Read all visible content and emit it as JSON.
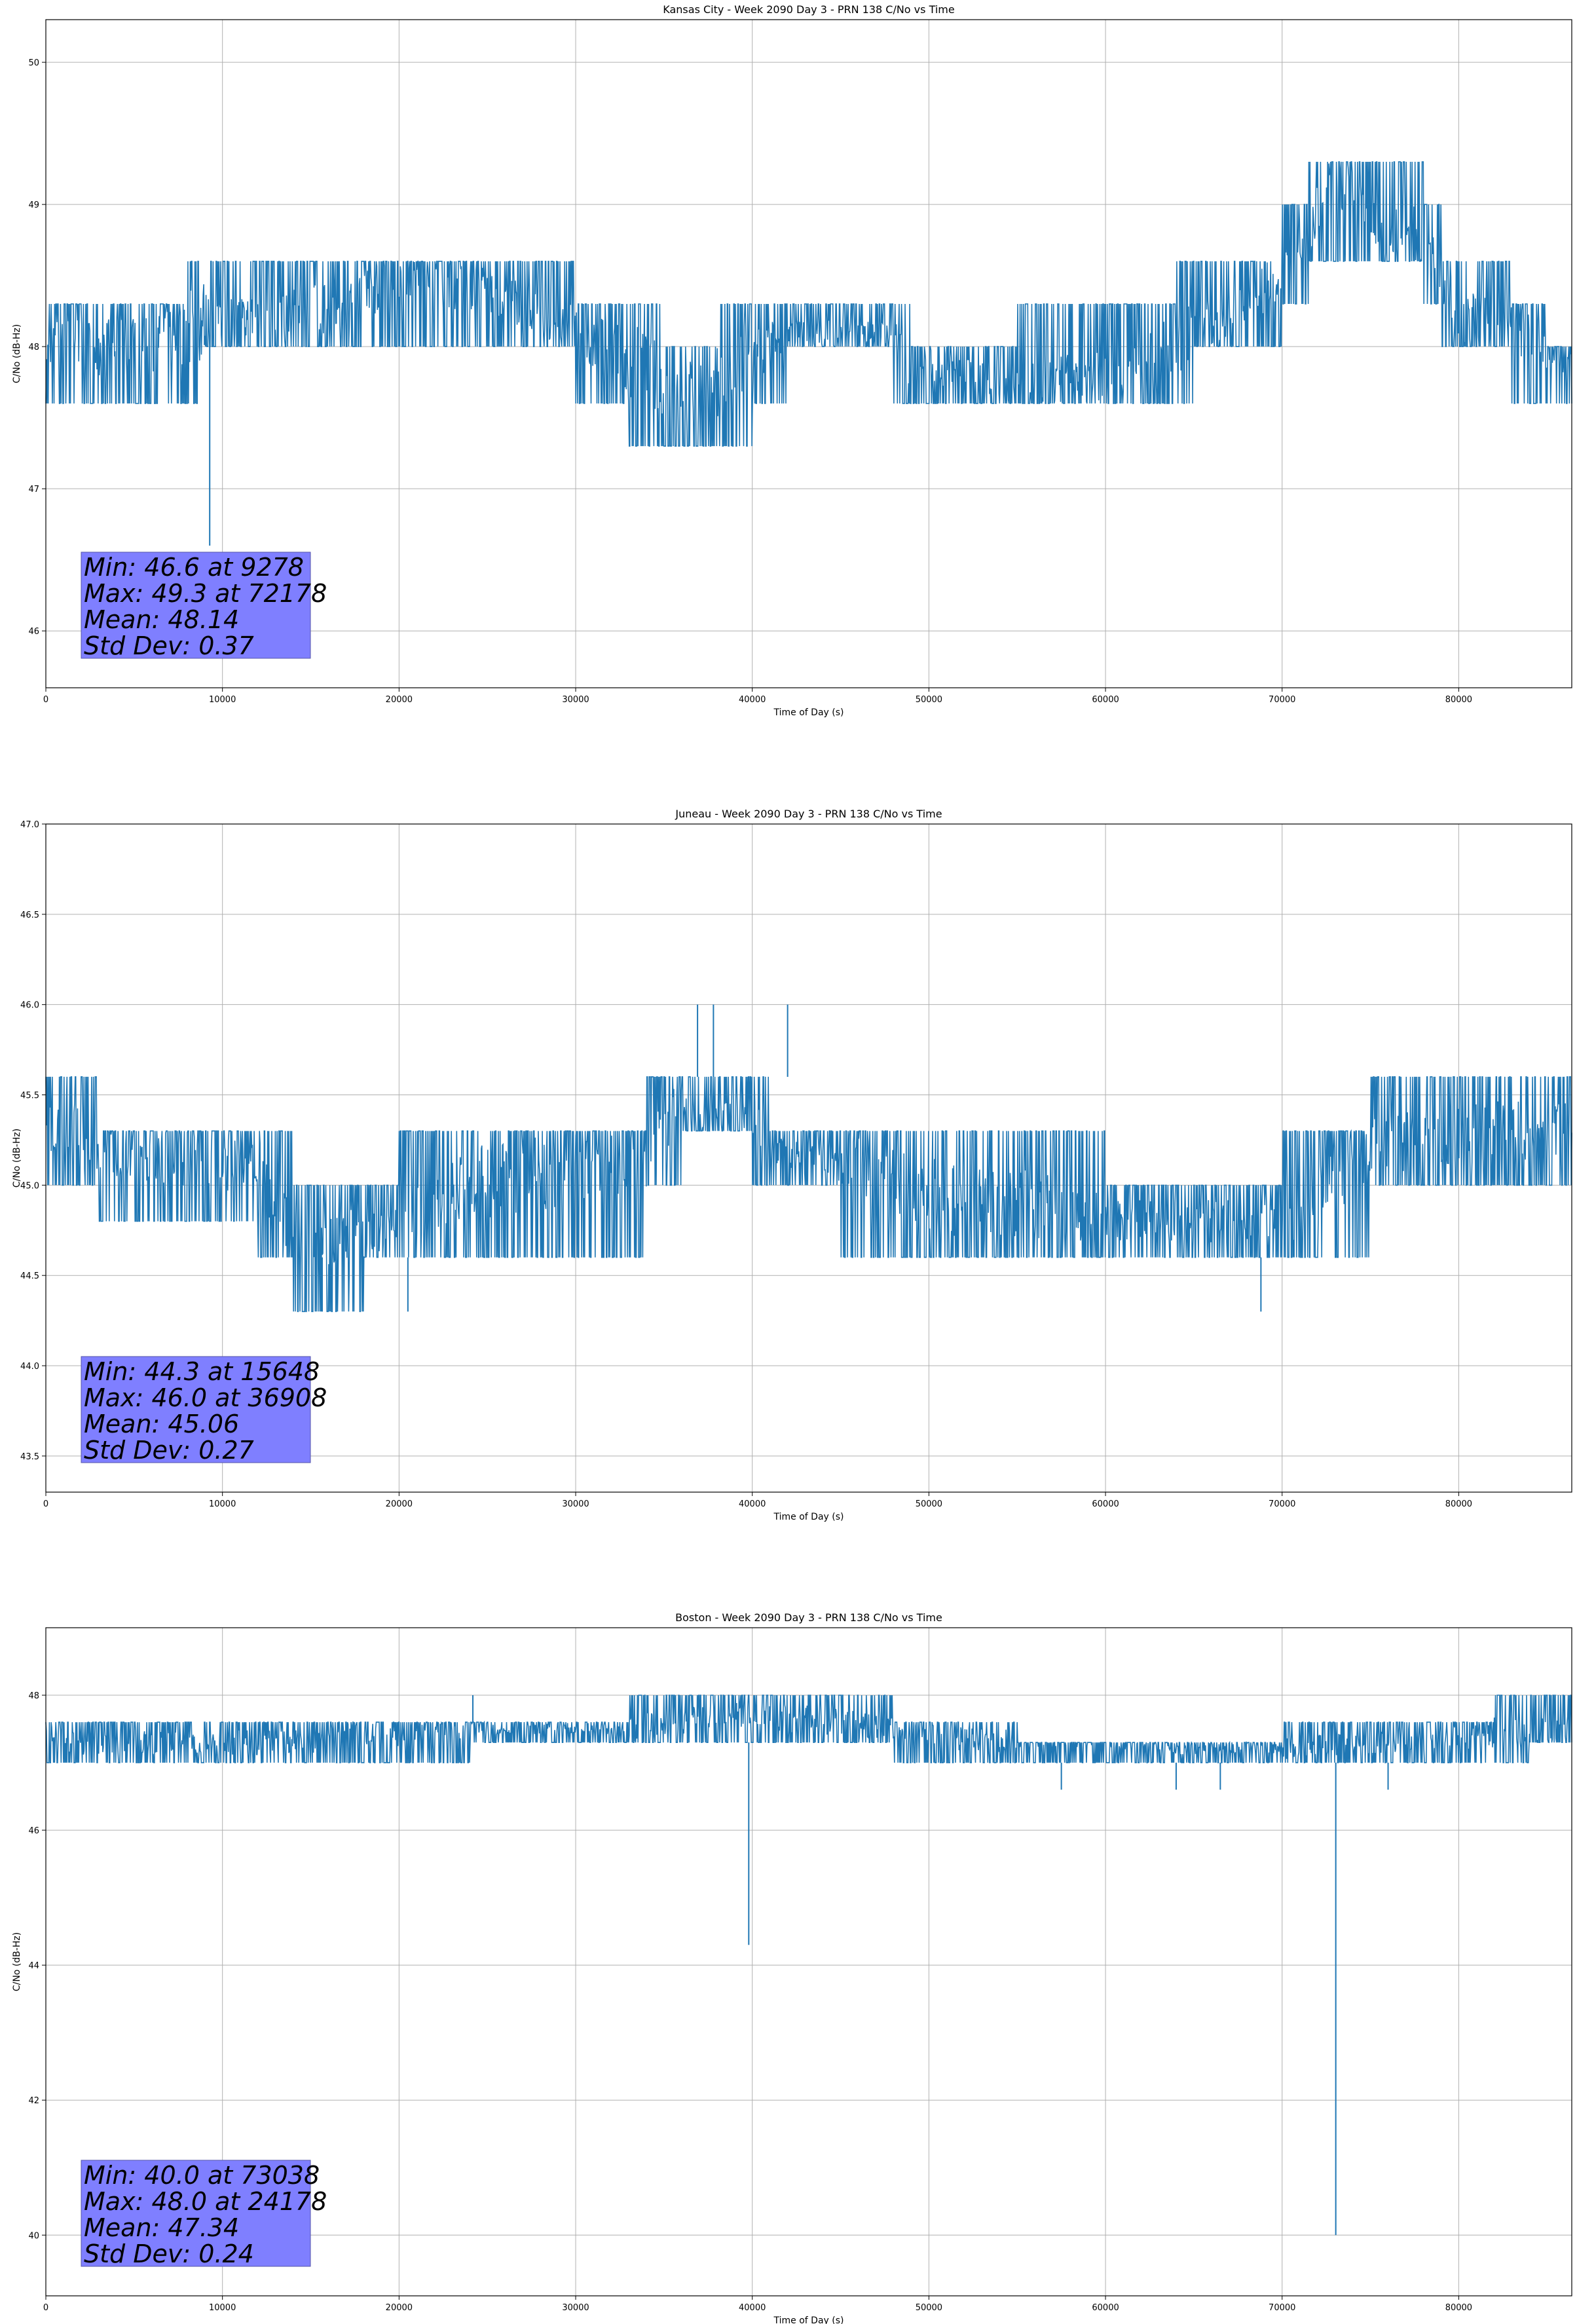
{
  "chart_data": [
    {
      "type": "line",
      "title": "Kansas City - Week 2090 Day 3 - PRN 138 C/No vs Time",
      "xlabel": "Time of Day (s)",
      "ylabel": "C/No (dB-Hz)",
      "xlim": [
        0,
        86400
      ],
      "ylim": [
        45.6,
        50.3
      ],
      "xticks": [
        0,
        10000,
        20000,
        30000,
        40000,
        50000,
        60000,
        70000,
        80000
      ],
      "yticks": [
        46,
        47,
        48,
        49,
        50
      ],
      "ytick_labels": [
        "46",
        "47",
        "48",
        "49",
        "50"
      ],
      "grid": true,
      "color": "#1f77b4",
      "segments": [
        [
          0,
          48.0,
          47.6,
          48.3
        ],
        [
          6000,
          48.0,
          47.6,
          48.3
        ],
        [
          8000,
          48.1,
          47.6,
          48.3
        ],
        [
          9000,
          48.2,
          48.0,
          48.6
        ],
        [
          13000,
          48.2,
          48.0,
          48.6
        ],
        [
          17000,
          48.3,
          48.0,
          48.6
        ],
        [
          20000,
          48.5,
          48.3,
          48.6
        ],
        [
          25000,
          48.4,
          48.0,
          48.6
        ],
        [
          30000,
          48.1,
          48.0,
          48.3
        ],
        [
          33000,
          47.9,
          47.6,
          48.3
        ],
        [
          35000,
          47.7,
          47.3,
          48.0
        ],
        [
          38000,
          47.7,
          47.3,
          48.0
        ],
        [
          40000,
          47.9,
          47.6,
          48.3
        ],
        [
          42000,
          48.1,
          48.0,
          48.3
        ],
        [
          48000,
          48.1,
          48.0,
          48.3
        ],
        [
          49000,
          47.9,
          47.6,
          48.0
        ],
        [
          55000,
          47.7,
          47.6,
          48.0
        ],
        [
          60000,
          47.8,
          47.6,
          48.3
        ],
        [
          64000,
          48.0,
          47.6,
          48.3
        ],
        [
          65000,
          48.1,
          48.0,
          48.6
        ],
        [
          68000,
          48.3,
          48.0,
          48.6
        ],
        [
          70000,
          48.5,
          48.3,
          48.6
        ],
        [
          71500,
          48.8,
          48.6,
          49.0
        ],
        [
          73000,
          49.2,
          49.0,
          49.3
        ],
        [
          75000,
          48.9,
          48.6,
          49.3
        ],
        [
          78000,
          48.8,
          48.6,
          49.0
        ],
        [
          79000,
          48.5,
          48.3,
          48.6
        ],
        [
          80000,
          48.2,
          48.0,
          48.6
        ],
        [
          83000,
          48.2,
          48.0,
          48.3
        ],
        [
          85000,
          47.9,
          47.6,
          48.0
        ],
        [
          86400,
          47.9,
          47.6,
          48.0
        ]
      ],
      "spikes": [
        [
          9278,
          46.6,
          48.0
        ]
      ],
      "stats": {
        "min": "Min: 46.6 at 9278",
        "max": "Max: 49.3 at 72178",
        "mean": "Mean: 48.14",
        "std": "Std Dev: 0.37"
      }
    },
    {
      "type": "line",
      "title": "Juneau - Week 2090 Day 3 - PRN 138 C/No vs Time",
      "xlabel": "Time of Day (s)",
      "ylabel": "C/No (dB-Hz)",
      "xlim": [
        0,
        86400
      ],
      "ylim": [
        43.3,
        47.0
      ],
      "xticks": [
        0,
        10000,
        20000,
        30000,
        40000,
        50000,
        60000,
        70000,
        80000
      ],
      "yticks": [
        43.5,
        44.0,
        44.5,
        45.0,
        45.5,
        46.0,
        46.5,
        47.0
      ],
      "ytick_labels": [
        "43.5",
        "44.0",
        "44.5",
        "45.0",
        "45.5",
        "46.0",
        "46.5",
        "47.0"
      ],
      "grid": true,
      "color": "#1f77b4",
      "segments": [
        [
          0,
          45.3,
          45.0,
          45.6
        ],
        [
          1500,
          45.3,
          45.0,
          45.6
        ],
        [
          3000,
          45.2,
          45.0,
          45.3
        ],
        [
          12000,
          45.1,
          44.8,
          45.3
        ],
        [
          14000,
          44.8,
          44.6,
          45.0
        ],
        [
          16000,
          44.7,
          44.3,
          45.0
        ],
        [
          18000,
          44.7,
          44.6,
          45.0
        ],
        [
          20000,
          44.8,
          44.6,
          45.0
        ],
        [
          22000,
          44.9,
          44.6,
          45.3
        ],
        [
          24000,
          45.0,
          44.6,
          45.3
        ],
        [
          30000,
          45.1,
          44.6,
          45.3
        ],
        [
          34000,
          45.2,
          45.0,
          45.3
        ],
        [
          36000,
          45.4,
          45.3,
          45.6
        ],
        [
          40000,
          45.4,
          45.3,
          45.6
        ],
        [
          41000,
          45.2,
          45.0,
          45.3
        ],
        [
          45000,
          45.1,
          45.0,
          45.3
        ],
        [
          48000,
          45.0,
          44.6,
          45.3
        ],
        [
          52000,
          44.9,
          44.6,
          45.3
        ],
        [
          56000,
          44.9,
          44.6,
          45.3
        ],
        [
          60000,
          44.8,
          44.6,
          45.0
        ],
        [
          65000,
          44.8,
          44.6,
          45.0
        ],
        [
          70000,
          44.8,
          44.6,
          45.0
        ],
        [
          72000,
          45.0,
          44.6,
          45.3
        ],
        [
          75000,
          45.2,
          45.0,
          45.3
        ],
        [
          80000,
          45.3,
          45.0,
          45.6
        ],
        [
          86400,
          45.3,
          45.0,
          45.6
        ]
      ],
      "spikes": [
        [
          15648,
          44.3,
          44.6
        ],
        [
          36900,
          46.0,
          45.6
        ],
        [
          37800,
          46.0,
          45.6
        ],
        [
          42000,
          46.0,
          45.6
        ],
        [
          20500,
          44.3,
          44.6
        ],
        [
          68800,
          44.3,
          44.6
        ]
      ],
      "stats": {
        "min": "Min: 44.3 at 15648",
        "max": "Max: 46.0 at 36908",
        "mean": "Mean: 45.06",
        "std": "Std Dev: 0.27"
      }
    },
    {
      "type": "line",
      "title": "Boston - Week 2090 Day 3 - PRN 138 C/No vs Time",
      "xlabel": "Time of Day (s)",
      "ylabel": "C/No (dB-Hz)",
      "xlim": [
        0,
        86400
      ],
      "ylim": [
        39.1,
        49.0
      ],
      "xticks": [
        0,
        10000,
        20000,
        30000,
        40000,
        50000,
        60000,
        70000,
        80000
      ],
      "yticks": [
        40,
        42,
        44,
        46,
        48
      ],
      "ytick_labels": [
        "40",
        "42",
        "44",
        "46",
        "48"
      ],
      "grid": true,
      "color": "#1f77b4",
      "segments": [
        [
          0,
          47.4,
          47.0,
          47.6
        ],
        [
          2000,
          47.3,
          47.0,
          47.6
        ],
        [
          15000,
          47.3,
          47.0,
          47.6
        ],
        [
          17000,
          47.4,
          47.0,
          47.6
        ],
        [
          20000,
          47.4,
          47.0,
          47.6
        ],
        [
          24000,
          47.5,
          47.3,
          47.6
        ],
        [
          33000,
          47.5,
          47.3,
          47.6
        ],
        [
          35000,
          47.6,
          47.3,
          48.0
        ],
        [
          40000,
          47.7,
          47.3,
          48.0
        ],
        [
          45000,
          47.6,
          47.3,
          48.0
        ],
        [
          48000,
          47.5,
          47.3,
          47.6
        ],
        [
          50000,
          47.4,
          47.0,
          47.6
        ],
        [
          55000,
          47.3,
          47.0,
          47.3
        ],
        [
          60000,
          47.3,
          47.0,
          47.3
        ],
        [
          65000,
          47.2,
          47.0,
          47.3
        ],
        [
          70000,
          47.2,
          47.0,
          47.3
        ],
        [
          75000,
          47.3,
          47.0,
          47.6
        ],
        [
          82000,
          47.4,
          47.0,
          47.6
        ],
        [
          84000,
          47.5,
          47.3,
          48.0
        ],
        [
          86400,
          47.5,
          47.3,
          48.0
        ]
      ],
      "spikes": [
        [
          24178,
          48.0,
          47.6
        ],
        [
          39800,
          44.3,
          47.3
        ],
        [
          73038,
          40.0,
          47.0
        ],
        [
          57500,
          46.6,
          47.0
        ],
        [
          64000,
          46.6,
          47.0
        ],
        [
          66500,
          46.6,
          47.0
        ],
        [
          76000,
          46.6,
          47.0
        ]
      ],
      "stats": {
        "min": "Min: 40.0 at 73038",
        "max": "Max: 48.0 at 24178",
        "mean": "Mean: 47.34",
        "std": "Std Dev: 0.24"
      }
    }
  ]
}
